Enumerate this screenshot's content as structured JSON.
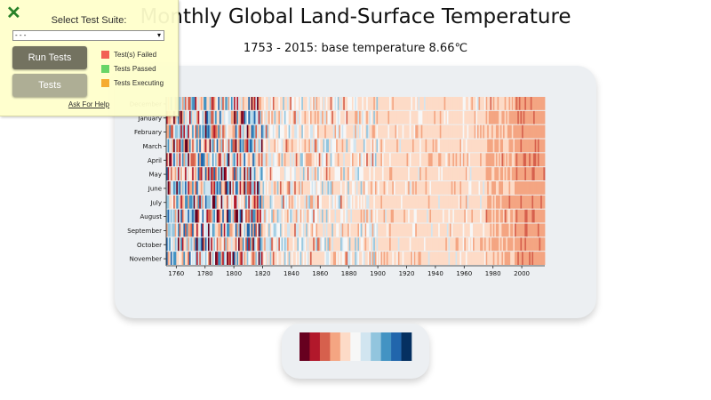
{
  "header": {
    "title": "Monthly Global Land-Surface Temperature",
    "subtitle": "1753 - 2015: base temperature 8.66℃"
  },
  "test_panel": {
    "close_icon": "close-x-icon",
    "suite_label": "Select Test Suite:",
    "suite_selected": "- - -",
    "run_label": "Run Tests",
    "tests_label": "Tests",
    "legend": [
      {
        "label": "Test(s) Failed",
        "color": "#f2574a"
      },
      {
        "label": "Tests Passed",
        "color": "#5fd35f"
      },
      {
        "label": "Tests Executing",
        "color": "#f5a623"
      }
    ],
    "help_label": "Ask For Help"
  },
  "chart_data": {
    "type": "heatmap",
    "title": "Monthly Global Land-Surface Temperature",
    "subtitle": "1753 - 2015: base temperature 8.66℃",
    "base_temperature": 8.66,
    "x_range": [
      1753,
      2015
    ],
    "x_ticks": [
      1760,
      1780,
      1800,
      1820,
      1840,
      1860,
      1880,
      1900,
      1920,
      1940,
      1960,
      1980,
      2000
    ],
    "y_categories": [
      "December",
      "January",
      "February",
      "March",
      "April",
      "May",
      "June",
      "July",
      "August",
      "September",
      "October",
      "November"
    ],
    "color_scale": [
      "#67001f",
      "#b2182b",
      "#d6604d",
      "#f4a582",
      "#fddbc7",
      "#f7f7f7",
      "#d1e5f0",
      "#92c5de",
      "#4393c3",
      "#2166ac",
      "#053061"
    ]
  }
}
